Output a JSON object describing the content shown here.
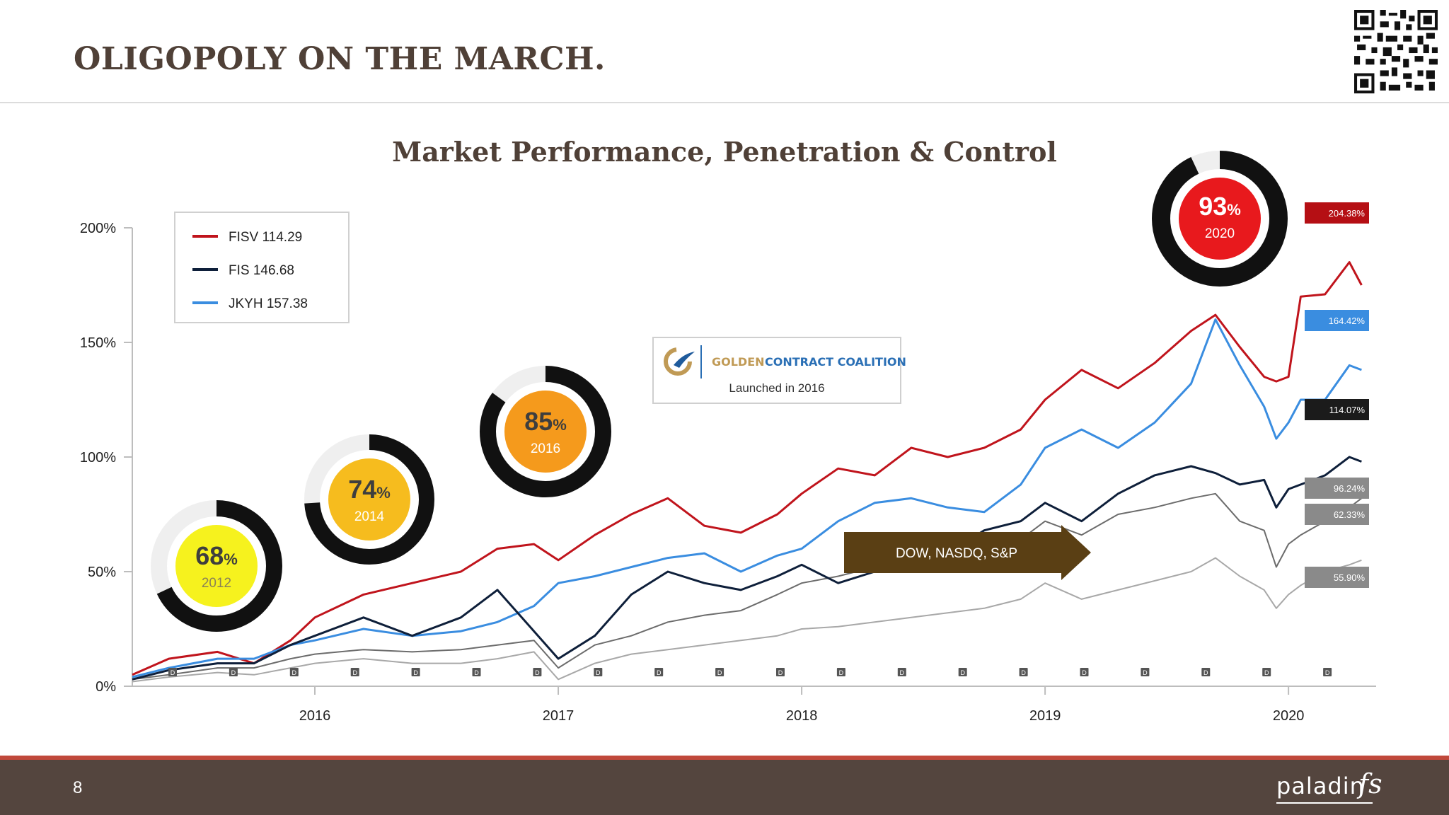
{
  "slide": {
    "title": "OLIGOPOLY ON THE MARCH.",
    "page_number": "8",
    "brand_name": "paladin",
    "brand_suffix": "fs"
  },
  "colors": {
    "title": "#4f4037",
    "fisv": "#c0141c",
    "fis": "#0e1f3a",
    "jkyh": "#3a8de0",
    "dark_gray": "#6c6c6c",
    "light_gray": "#a8a8a8",
    "footer": "#54453e",
    "footer_accent": "#c0483b",
    "arrow": "#5a3f14"
  },
  "chart_data": {
    "type": "line",
    "title": "Market Performance, Penetration & Control",
    "xlabel": "",
    "ylabel": "",
    "x_ticks": [
      "2016",
      "2017",
      "2018",
      "2019",
      "2020"
    ],
    "x_tick_years": [
      2016,
      2017,
      2018,
      2019,
      2020
    ],
    "x_range": [
      2015.25,
      2020.36
    ],
    "y_ticks": [
      "0%",
      "50%",
      "100%",
      "150%",
      "200%"
    ],
    "ylim": [
      0,
      200
    ],
    "grid": false,
    "legend": {
      "position": "top-left",
      "entries": [
        {
          "label": "FISV 114.29",
          "color": "#c0141c"
        },
        {
          "label": "FIS 146.68",
          "color": "#0e1f3a"
        },
        {
          "label": "JKYH 157.38",
          "color": "#3a8de0"
        }
      ]
    },
    "series": [
      {
        "name": "FISV 114.29",
        "color": "#c0141c",
        "x": [
          2015.25,
          2015.4,
          2015.6,
          2015.75,
          2015.9,
          2016.0,
          2016.2,
          2016.4,
          2016.6,
          2016.75,
          2016.9,
          2017.0,
          2017.15,
          2017.3,
          2017.45,
          2017.6,
          2017.75,
          2017.9,
          2018.0,
          2018.15,
          2018.3,
          2018.45,
          2018.6,
          2018.75,
          2018.9,
          2019.0,
          2019.15,
          2019.3,
          2019.45,
          2019.6,
          2019.7,
          2019.8,
          2019.9,
          2019.95,
          2020.0,
          2020.05,
          2020.15,
          2020.25,
          2020.3
        ],
        "y": [
          5,
          12,
          15,
          10,
          20,
          30,
          40,
          45,
          50,
          60,
          62,
          55,
          66,
          75,
          82,
          70,
          67,
          75,
          84,
          95,
          92,
          104,
          100,
          104,
          112,
          125,
          138,
          130,
          141,
          155,
          162,
          148,
          135,
          133,
          135,
          170,
          171,
          185,
          175
        ]
      },
      {
        "name": "FIS 146.68",
        "color": "#0e1f3a",
        "x": [
          2015.25,
          2015.4,
          2015.6,
          2015.75,
          2015.9,
          2016.0,
          2016.2,
          2016.4,
          2016.6,
          2016.75,
          2016.9,
          2017.0,
          2017.15,
          2017.3,
          2017.45,
          2017.6,
          2017.75,
          2017.9,
          2018.0,
          2018.15,
          2018.3,
          2018.45,
          2018.6,
          2018.75,
          2018.9,
          2019.0,
          2019.15,
          2019.3,
          2019.45,
          2019.6,
          2019.7,
          2019.8,
          2019.9,
          2019.95,
          2020.0,
          2020.05,
          2020.15,
          2020.25,
          2020.3
        ],
        "y": [
          3,
          7,
          10,
          10,
          18,
          22,
          30,
          22,
          30,
          42,
          24,
          12,
          22,
          40,
          50,
          45,
          42,
          48,
          53,
          45,
          50,
          50,
          58,
          68,
          72,
          80,
          72,
          84,
          92,
          96,
          93,
          88,
          90,
          78,
          86,
          88,
          92,
          100,
          98
        ]
      },
      {
        "name": "JKYH 157.38",
        "color": "#3a8de0",
        "x": [
          2015.25,
          2015.4,
          2015.6,
          2015.75,
          2015.9,
          2016.0,
          2016.2,
          2016.4,
          2016.6,
          2016.75,
          2016.9,
          2017.0,
          2017.15,
          2017.3,
          2017.45,
          2017.6,
          2017.75,
          2017.9,
          2018.0,
          2018.15,
          2018.3,
          2018.45,
          2018.6,
          2018.75,
          2018.9,
          2019.0,
          2019.15,
          2019.3,
          2019.45,
          2019.6,
          2019.7,
          2019.8,
          2019.9,
          2019.95,
          2020.0,
          2020.05,
          2020.15,
          2020.25,
          2020.3
        ],
        "y": [
          4,
          8,
          12,
          12,
          18,
          20,
          25,
          22,
          24,
          28,
          35,
          45,
          48,
          52,
          56,
          58,
          50,
          57,
          60,
          72,
          80,
          82,
          78,
          76,
          88,
          104,
          112,
          104,
          115,
          132,
          160,
          140,
          122,
          108,
          115,
          125,
          125,
          140,
          138
        ]
      },
      {
        "name": "",
        "color": "#6c6c6c",
        "x": [
          2015.25,
          2015.4,
          2015.6,
          2015.75,
          2015.9,
          2016.0,
          2016.2,
          2016.4,
          2016.6,
          2016.75,
          2016.9,
          2017.0,
          2017.15,
          2017.3,
          2017.45,
          2017.6,
          2017.75,
          2017.9,
          2018.0,
          2018.15,
          2018.3,
          2018.45,
          2018.6,
          2018.75,
          2018.9,
          2019.0,
          2019.15,
          2019.3,
          2019.45,
          2019.6,
          2019.7,
          2019.8,
          2019.9,
          2019.95,
          2020.0,
          2020.05,
          2020.15,
          2020.25,
          2020.3
        ],
        "y": [
          3,
          5,
          8,
          8,
          12,
          14,
          16,
          15,
          16,
          18,
          20,
          8,
          18,
          22,
          28,
          31,
          33,
          40,
          45,
          48,
          52,
          55,
          58,
          60,
          64,
          72,
          66,
          75,
          78,
          82,
          84,
          72,
          68,
          52,
          62,
          66,
          72,
          78,
          82
        ]
      },
      {
        "name": "",
        "color": "#a8a8a8",
        "x": [
          2015.25,
          2015.4,
          2015.6,
          2015.75,
          2015.9,
          2016.0,
          2016.2,
          2016.4,
          2016.6,
          2016.75,
          2016.9,
          2017.0,
          2017.15,
          2017.3,
          2017.45,
          2017.6,
          2017.75,
          2017.9,
          2018.0,
          2018.15,
          2018.3,
          2018.45,
          2018.6,
          2018.75,
          2018.9,
          2019.0,
          2019.15,
          2019.3,
          2019.45,
          2019.6,
          2019.7,
          2019.8,
          2019.9,
          2019.95,
          2020.0,
          2020.05,
          2020.15,
          2020.25,
          2020.3
        ],
        "y": [
          2,
          4,
          6,
          5,
          8,
          10,
          12,
          10,
          10,
          12,
          15,
          3,
          10,
          14,
          16,
          18,
          20,
          22,
          25,
          26,
          28,
          30,
          32,
          34,
          38,
          45,
          38,
          42,
          46,
          50,
          56,
          48,
          42,
          34,
          40,
          44,
          50,
          53,
          55
        ]
      }
    ],
    "value_tags": [
      {
        "label": "204.38%",
        "bg": "#b50f14",
        "value": 204.38
      },
      {
        "label": "164.42%",
        "bg": "#3a8de0",
        "value": 164.42
      },
      {
        "label": "114.07%",
        "bg": "#1b1b1b",
        "value": 114.07
      },
      {
        "label": "96.24%",
        "bg": "#8a8a8a",
        "value": 96.24
      },
      {
        "label": "62.33%",
        "bg": "#8a8a8a",
        "value": 62.33
      },
      {
        "label": "55.90%",
        "bg": "#8a8a8a",
        "value": 55.9
      }
    ],
    "donuts": [
      {
        "pct": "68",
        "pct_sign": "%",
        "year": "2012",
        "value": 68,
        "fill": "#f6f21e",
        "text_color": "#3e3e3e",
        "year_color": "#8a8256"
      },
      {
        "pct": "74",
        "pct_sign": "%",
        "year": "2014",
        "value": 74,
        "fill": "#f6bc1e",
        "text_color": "#3e3e3e",
        "year_color": "#ffffff"
      },
      {
        "pct": "85",
        "pct_sign": "%",
        "year": "2016",
        "value": 85,
        "fill": "#f59a1c",
        "text_color": "#3e3e3e",
        "year_color": "#ffffff"
      },
      {
        "pct": "93",
        "pct_sign": "%",
        "year": "2020",
        "value": 93,
        "fill": "#e8191d",
        "text_color": "#ffffff",
        "year_color": "#ffffff"
      }
    ],
    "annotations": {
      "coalition_name_part1": "GOLDEN",
      "coalition_name_part2": "CONTRACT COALITION",
      "coalition_launch": "Launched in 2016",
      "arrow_label": "DOW, NASDQ, S&P",
      "dividend_marker": "D"
    }
  }
}
